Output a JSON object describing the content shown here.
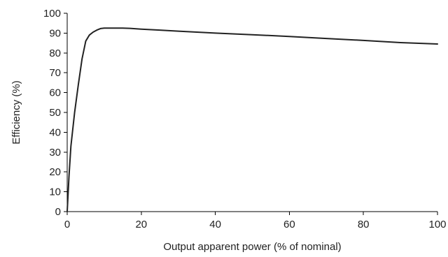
{
  "chart_data": {
    "type": "line",
    "title": "",
    "xlabel": "Output apparent power (% of nominal)",
    "ylabel": "Efficiency (%)",
    "xlim": [
      0,
      100
    ],
    "ylim": [
      0,
      100
    ],
    "x_ticks": [
      0,
      20,
      40,
      60,
      80,
      100
    ],
    "y_ticks": [
      0,
      10,
      20,
      30,
      40,
      50,
      60,
      70,
      80,
      90,
      100
    ],
    "grid": false,
    "legend": "none",
    "line_color": "#222222",
    "series": [
      {
        "x": [
          0,
          0.5,
          1,
          2,
          3,
          4,
          5,
          6,
          7,
          8,
          9,
          10,
          12,
          15,
          17,
          20,
          25,
          30,
          40,
          50,
          60,
          70,
          80,
          90,
          100
        ],
        "y": [
          0,
          18,
          33,
          50,
          64,
          77,
          86,
          89,
          90.5,
          91.5,
          92.3,
          92.5,
          92.5,
          92.5,
          92.4,
          92,
          91.5,
          91,
          90,
          89.2,
          88.3,
          87.3,
          86.3,
          85.2,
          84.5
        ]
      }
    ]
  }
}
